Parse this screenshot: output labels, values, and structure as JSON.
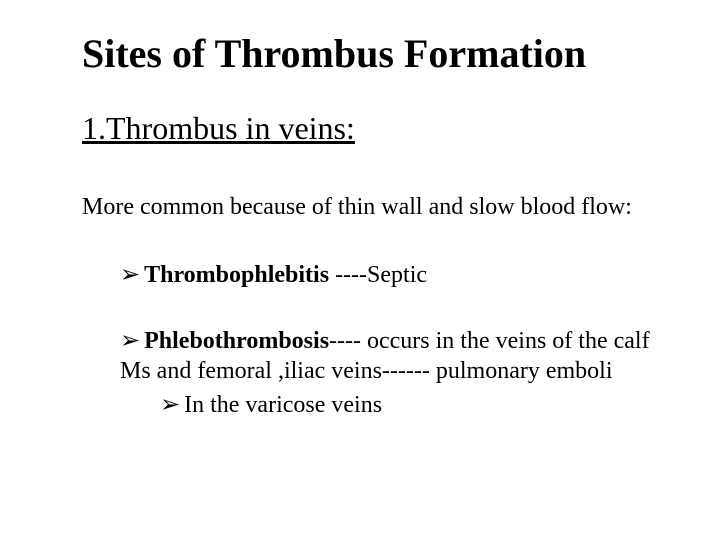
{
  "title": "Sites of Thrombus Formation",
  "subheading": "1.Thrombus in veins:",
  "intro": "More common because of thin wall and slow blood flow:",
  "bullets": {
    "b1": {
      "arrow": "➢",
      "term": "Thrombophlebitis",
      "rest": " ----Septic"
    },
    "b2": {
      "arrow": "➢",
      "term": "Phlebothrombosis",
      "rest": "---- occurs in the veins of the calf Ms and femoral ,iliac veins------ pulmonary emboli",
      "sub": {
        "arrow": "➢",
        "text": "In the varicose veins"
      }
    }
  },
  "colors": {
    "background": "#ffffff",
    "text": "#000000"
  }
}
